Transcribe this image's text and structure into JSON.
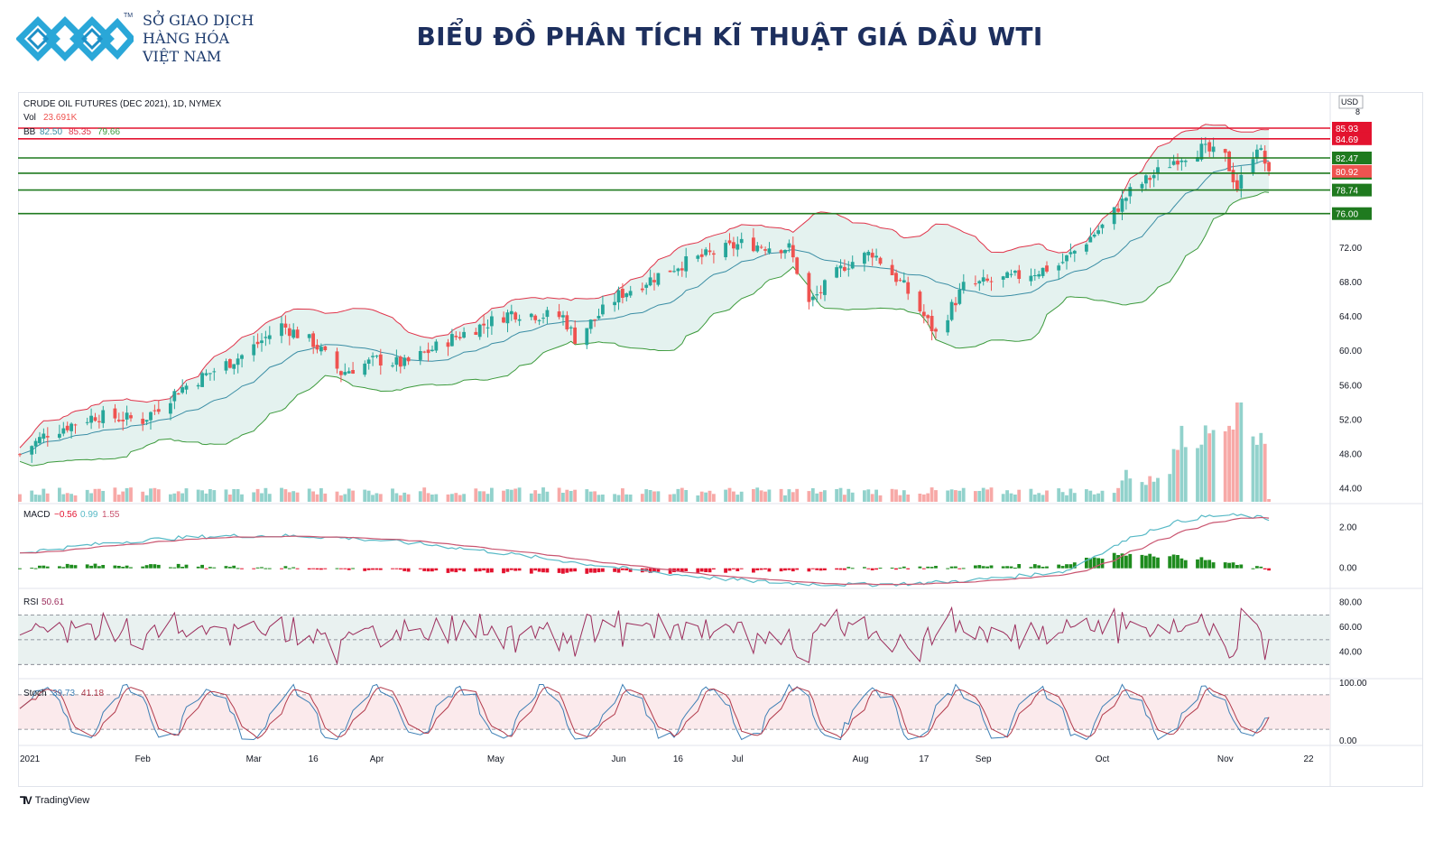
{
  "header": {
    "logo_lines": [
      "SỞ GIAO DỊCH",
      "HÀNG HÓA",
      "VIỆT NAM"
    ],
    "trademark": "TM",
    "title": "BIỂU ĐỒ PHÂN TÍCH KĨ THUẬT GIÁ DẦU WTI",
    "logo_icon": "diamond-chain-logo"
  },
  "colors": {
    "up": "#26a69a",
    "down": "#ef5350",
    "bb_upper": "#e0344a",
    "bb_lower": "#3c9a3c",
    "bb_basis": "#3b8ea5",
    "bb_fill": "#e4f2ef",
    "red_line": "#e3132f",
    "green_line": "#1f7a1f",
    "macd_line": "#57b9c6",
    "signal_line": "#c9546f",
    "rsi_line": "#9c2d5c",
    "stoch_k": "#3d7fb5",
    "stoch_d": "#b23b4c"
  },
  "legend": {
    "symbol": "CRUDE OIL FUTURES (DEC 2021), 1D, NYMEX",
    "vol_label": "Vol",
    "vol_value": "23.691K",
    "bb_label": "BB",
    "bb_values": [
      "82.50",
      "85.35",
      "79.66"
    ],
    "macd_label": "MACD",
    "macd_values": [
      "−0.56",
      "0.99",
      "1.55"
    ],
    "rsi_label": "RSI",
    "rsi_value": "50.61",
    "stoch_label": "Stoch",
    "stoch_values": [
      "39.73",
      "41.18"
    ]
  },
  "axis": {
    "currency": "USD",
    "top_cut": "8",
    "x_labels": [
      "2021",
      "Feb",
      "Mar",
      "16",
      "Apr",
      "May",
      "Jun",
      "16",
      "Jul",
      "Aug",
      "17",
      "Sep",
      "Oct",
      "Nov",
      "22"
    ],
    "price_ticks": [
      "72.00",
      "68.00",
      "64.00",
      "60.00",
      "56.00",
      "52.00",
      "48.00",
      "44.00"
    ],
    "macd_ticks": [
      "2.00",
      "0.00"
    ],
    "rsi_ticks": [
      "80.00",
      "60.00",
      "40.00"
    ],
    "stoch_ticks": [
      "100.00",
      "0.00"
    ]
  },
  "brand": "TradingView",
  "chart_data": {
    "type": "candlestick",
    "instrument": "CRUDE OIL FUTURES (DEC 2021), 1D, NYMEX",
    "price_range": [
      42.5,
      89.5
    ],
    "x_range_dates": [
      "2021-01-01",
      "2021-11-27"
    ],
    "last_price": 80.92,
    "horizontal_levels": [
      {
        "value": 85.93,
        "label": "85.93",
        "color": "#e3132f"
      },
      {
        "value": 84.69,
        "label": "84.69",
        "color": "#e3132f"
      },
      {
        "value": 82.47,
        "label": "82.47",
        "color": "#1f7a1f"
      },
      {
        "value": 80.7,
        "label": "80.70",
        "color": "#1f7a1f"
      },
      {
        "value": 78.74,
        "label": "78.74",
        "color": "#1f7a1f"
      },
      {
        "value": 76.0,
        "label": "76.00",
        "color": "#1f7a1f"
      }
    ],
    "close_keypoints": [
      {
        "date": "2021-01-01",
        "close": 48.0
      },
      {
        "date": "2021-01-08",
        "close": 50.5
      },
      {
        "date": "2021-01-20",
        "close": 52.5
      },
      {
        "date": "2021-02-01",
        "close": 52.0
      },
      {
        "date": "2021-02-10",
        "close": 55.5
      },
      {
        "date": "2021-02-26",
        "close": 59.5
      },
      {
        "date": "2021-03-08",
        "close": 63.0
      },
      {
        "date": "2021-03-16",
        "close": 61.0
      },
      {
        "date": "2021-03-23",
        "close": 57.5
      },
      {
        "date": "2021-04-01",
        "close": 59.0
      },
      {
        "date": "2021-04-08",
        "close": 58.5
      },
      {
        "date": "2021-04-20",
        "close": 61.5
      },
      {
        "date": "2021-05-05",
        "close": 64.5
      },
      {
        "date": "2021-05-18",
        "close": 64.0
      },
      {
        "date": "2021-05-21",
        "close": 61.5
      },
      {
        "date": "2021-06-01",
        "close": 66.5
      },
      {
        "date": "2021-06-16",
        "close": 70.0
      },
      {
        "date": "2021-07-02",
        "close": 72.5
      },
      {
        "date": "2021-07-14",
        "close": 72.0
      },
      {
        "date": "2021-07-19",
        "close": 65.5
      },
      {
        "date": "2021-07-28",
        "close": 70.0
      },
      {
        "date": "2021-08-04",
        "close": 71.5
      },
      {
        "date": "2021-08-12",
        "close": 67.5
      },
      {
        "date": "2021-08-20",
        "close": 62.0
      },
      {
        "date": "2021-08-27",
        "close": 67.5
      },
      {
        "date": "2021-09-08",
        "close": 68.5
      },
      {
        "date": "2021-09-20",
        "close": 70.0
      },
      {
        "date": "2021-10-01",
        "close": 74.5
      },
      {
        "date": "2021-10-08",
        "close": 78.5
      },
      {
        "date": "2021-10-20",
        "close": 82.5
      },
      {
        "date": "2021-10-26",
        "close": 83.5
      },
      {
        "date": "2021-11-01",
        "close": 82.5
      },
      {
        "date": "2021-11-04",
        "close": 79.0
      },
      {
        "date": "2021-11-09",
        "close": 84.0
      },
      {
        "date": "2021-11-12",
        "close": 80.9
      }
    ],
    "volume_pattern": "low through September, rising in October with a spike in early November",
    "indicators": {
      "bollinger_bands": {
        "basis": 82.5,
        "upper": 85.35,
        "lower": 79.66
      },
      "volume": {
        "last": "23.691K"
      },
      "macd": {
        "macd": -0.56,
        "signal": 0.99,
        "histogram": 1.55,
        "range": [
          -0.9,
          3.0
        ]
      },
      "rsi": {
        "value": 50.61,
        "bands": [
          30,
          50,
          70
        ],
        "range": [
          20,
          90
        ]
      },
      "stoch": {
        "k": 39.73,
        "d": 41.18,
        "bands": [
          20,
          80
        ],
        "range": [
          -5,
          105
        ]
      }
    }
  }
}
